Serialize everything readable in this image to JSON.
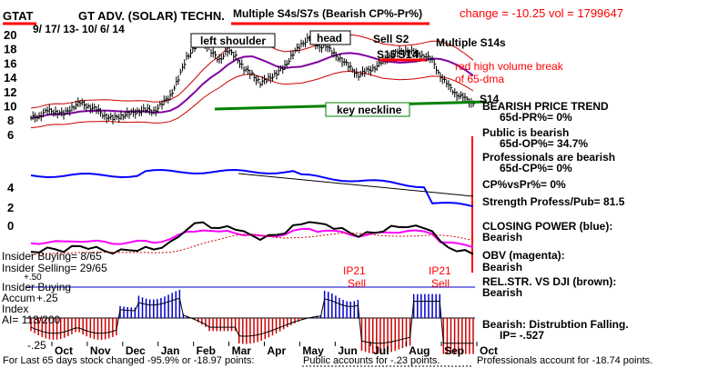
{
  "header": {
    "ticker": "GTAT",
    "company": "GT ADV. (SOLAR) TECHN.",
    "date_range": "9/ 17/ 13-  10/ 6/ 14",
    "change_label": "change = -10.25  vol = 1799647"
  },
  "annotations": {
    "multiple_s4s": "Multiple S4s/S7s (Bearish CP%-Pr%)",
    "left_shoulder": "left shoulder",
    "head": "head",
    "sell_s2": "Sell S2",
    "multiple_s14s": "Multiple S14s",
    "s15": "S15",
    "s14_top": "S14",
    "red_high_volume": "red high volume break",
    "of_65dma": "of 65-dma",
    "s14_right": "S14",
    "key_neckline": "key neckline",
    "ip21_left": "IP21",
    "sell_left": "Sell",
    "ip21_right": "IP21",
    "sell_right": "Sell"
  },
  "right_panel": {
    "bearish_trend": "BEARISH PRICE TREND",
    "pr_65d": "65d-PR%= 0%",
    "public_bearish": "Public is bearish",
    "op_65d": "65d-OP%= 34.7%",
    "pros_bearish": "Professionals are bearish",
    "cp_65d": "65d-CP%= 0%",
    "cp_vs_pr": "CP%vsPr%=  0%",
    "strength": "Strength Profess/Pub= 81.5",
    "closing_power": "CLOSING POWER (blue):",
    "closing_power_val": "Bearish",
    "obv": "OBV (magenta):",
    "obv_val": "Bearish",
    "rel_str": "REL.STR. VS DJI (brown):",
    "rel_str_val": "Bearish",
    "dist": "Bearish: Distrubtion Falling.",
    "ip": "IP= -.527"
  },
  "left_panel": {
    "insider_buying": "Insider Buying= 8/65",
    "insider_selling": "Insider Selling= 29/65",
    "plus50": "+.50",
    "insider_buying2": "Insider Buying",
    "accum": "Accum",
    "plus25": "+.25",
    "index": "Index",
    "ai": "AI= 113/200",
    "minus25": "-.25"
  },
  "footer": {
    "text1": "For Last 65 days stock changed -95.9% or -18.97 points:",
    "text2": "Public accounts for -.23 points.",
    "text3": "Professionals account for -18.74 points."
  },
  "colors": {
    "price": "#000000",
    "band": "#cc0000",
    "ma": "#8000a0",
    "neckline": "#008000",
    "closing_power": "#0000ff",
    "obv": "#ff00ff",
    "relstr": "#000000",
    "accum_pos": "#0000cc",
    "accum_neg": "#cc0000",
    "annot_red": "#ff0000"
  },
  "chart_data": {
    "type": "line",
    "x_labels": [
      "Oct",
      "Nov",
      "Dec",
      "Jan",
      "Feb",
      "Mar",
      "Apr",
      "May",
      "Jun",
      "Jul",
      "Aug",
      "Sep",
      "Oct"
    ],
    "y_ticks": [
      20,
      18,
      16,
      14,
      12,
      10,
      8,
      6,
      4,
      2,
      0
    ],
    "ylim": [
      0,
      21
    ],
    "series": [
      {
        "values": [
          8.3,
          8.6,
          9.3,
          9.2,
          8.8,
          9.8,
          10.4,
          9.9,
          9.5,
          8.6,
          8.2,
          8.6,
          8.9,
          9.2,
          9.5,
          9.2,
          10.3,
          11.4,
          13.8,
          16.8,
          18.2,
          19.2,
          17.6,
          16.4,
          17.8,
          16.9,
          15.2,
          14.4,
          13.2,
          13.8,
          14.6,
          15.5,
          17.4,
          18.5,
          19.7,
          18.2,
          18.5,
          17.2,
          16.4,
          15.3,
          14.3,
          14.9,
          15.4,
          16.2,
          17.2,
          17.5,
          17.8,
          17.3,
          17.1,
          16.3,
          14.2,
          12.7,
          11.6,
          11.0,
          10.3
        ]
      }
    ]
  }
}
